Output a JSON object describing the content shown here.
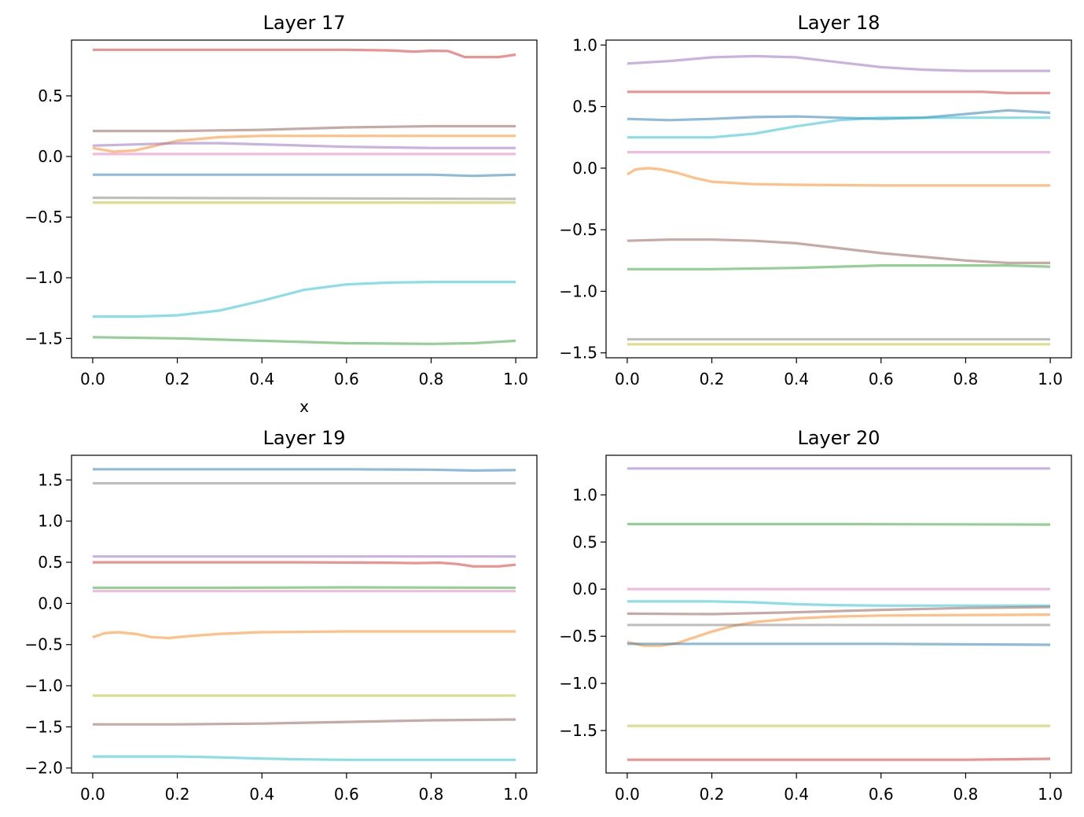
{
  "colors": {
    "blue": "#1f77b4",
    "orange": "#ff7f0e",
    "green": "#2ca02c",
    "red": "#d62728",
    "purple": "#9467bd",
    "brown": "#8c564b",
    "pink": "#e377c2",
    "gray": "#7f7f7f",
    "olive": "#bcbd22",
    "cyan": "#17becf"
  },
  "chart_data": [
    {
      "type": "line",
      "title": "Layer 17",
      "xlabel": "x",
      "ylabel": "",
      "xlim": [
        -0.05,
        1.05
      ],
      "ylim": [
        -1.66,
        0.96
      ],
      "xticks": [
        0.0,
        0.2,
        0.4,
        0.6,
        0.8,
        1.0
      ],
      "xtick_labels": [
        "0.0",
        "0.2",
        "0.4",
        "0.6",
        "0.8",
        "1.0"
      ],
      "yticks": [
        -1.5,
        -1.0,
        -0.5,
        0.0,
        0.5
      ],
      "ytick_labels": [
        "−1.5",
        "−1.0",
        "−0.5",
        "0.0",
        "0.5"
      ],
      "grid": false,
      "series": [
        {
          "color": "red",
          "x": [
            0,
            0.2,
            0.4,
            0.6,
            0.7,
            0.76,
            0.8,
            0.84,
            0.88,
            0.92,
            0.96,
            1.0
          ],
          "y": [
            0.88,
            0.88,
            0.88,
            0.88,
            0.875,
            0.865,
            0.872,
            0.87,
            0.82,
            0.82,
            0.82,
            0.84
          ]
        },
        {
          "color": "brown",
          "x": [
            0,
            0.2,
            0.4,
            0.6,
            0.8,
            1.0
          ],
          "y": [
            0.21,
            0.21,
            0.22,
            0.24,
            0.25,
            0.25
          ]
        },
        {
          "color": "orange",
          "x": [
            0,
            0.05,
            0.1,
            0.15,
            0.2,
            0.3,
            0.4,
            0.6,
            0.8,
            1.0
          ],
          "y": [
            0.07,
            0.04,
            0.05,
            0.09,
            0.13,
            0.16,
            0.17,
            0.17,
            0.17,
            0.17
          ]
        },
        {
          "color": "purple",
          "x": [
            0,
            0.2,
            0.3,
            0.4,
            0.6,
            0.8,
            1.0
          ],
          "y": [
            0.09,
            0.11,
            0.11,
            0.1,
            0.08,
            0.07,
            0.07
          ]
        },
        {
          "color": "pink",
          "x": [
            0,
            0.5,
            1.0
          ],
          "y": [
            0.02,
            0.02,
            0.02
          ]
        },
        {
          "color": "blue",
          "x": [
            0,
            0.2,
            0.4,
            0.6,
            0.8,
            0.9,
            1.0
          ],
          "y": [
            -0.15,
            -0.15,
            -0.15,
            -0.15,
            -0.15,
            -0.16,
            -0.15
          ]
        },
        {
          "color": "gray",
          "x": [
            0,
            0.5,
            1.0
          ],
          "y": [
            -0.34,
            -0.345,
            -0.35
          ]
        },
        {
          "color": "olive",
          "x": [
            0,
            0.5,
            1.0
          ],
          "y": [
            -0.38,
            -0.38,
            -0.38
          ]
        },
        {
          "color": "cyan",
          "x": [
            0,
            0.1,
            0.2,
            0.3,
            0.4,
            0.5,
            0.6,
            0.7,
            0.8,
            1.0
          ],
          "y": [
            -1.32,
            -1.32,
            -1.31,
            -1.27,
            -1.19,
            -1.1,
            -1.055,
            -1.04,
            -1.035,
            -1.035
          ]
        },
        {
          "color": "green",
          "x": [
            0,
            0.2,
            0.4,
            0.6,
            0.8,
            0.9,
            1.0
          ],
          "y": [
            -1.49,
            -1.5,
            -1.52,
            -1.54,
            -1.545,
            -1.54,
            -1.52
          ]
        }
      ]
    },
    {
      "type": "line",
      "title": "Layer 18",
      "xlabel": "",
      "ylabel": "",
      "xlim": [
        -0.05,
        1.05
      ],
      "ylim": [
        -1.54,
        1.04
      ],
      "xticks": [
        0.0,
        0.2,
        0.4,
        0.6,
        0.8,
        1.0
      ],
      "xtick_labels": [
        "0.0",
        "0.2",
        "0.4",
        "0.6",
        "0.8",
        "1.0"
      ],
      "yticks": [
        -1.5,
        -1.0,
        -0.5,
        0.0,
        0.5,
        1.0
      ],
      "ytick_labels": [
        "−1.5",
        "−1.0",
        "−0.5",
        "0.0",
        "0.5",
        "1.0"
      ],
      "grid": false,
      "series": [
        {
          "color": "purple",
          "x": [
            0,
            0.1,
            0.2,
            0.3,
            0.4,
            0.5,
            0.6,
            0.7,
            0.8,
            1.0
          ],
          "y": [
            0.85,
            0.87,
            0.9,
            0.91,
            0.9,
            0.86,
            0.82,
            0.8,
            0.79,
            0.79
          ]
        },
        {
          "color": "red",
          "x": [
            0,
            0.5,
            0.8,
            0.84,
            0.9,
            1.0
          ],
          "y": [
            0.62,
            0.62,
            0.62,
            0.62,
            0.61,
            0.61
          ]
        },
        {
          "color": "blue",
          "x": [
            0,
            0.1,
            0.2,
            0.3,
            0.4,
            0.5,
            0.6,
            0.7,
            0.8,
            0.9,
            1.0
          ],
          "y": [
            0.4,
            0.39,
            0.4,
            0.415,
            0.42,
            0.41,
            0.4,
            0.41,
            0.44,
            0.47,
            0.45
          ]
        },
        {
          "color": "cyan",
          "x": [
            0,
            0.1,
            0.2,
            0.3,
            0.4,
            0.5,
            0.6,
            0.8,
            1.0
          ],
          "y": [
            0.25,
            0.25,
            0.25,
            0.28,
            0.34,
            0.39,
            0.41,
            0.41,
            0.41
          ]
        },
        {
          "color": "pink",
          "x": [
            0,
            0.5,
            1.0
          ],
          "y": [
            0.13,
            0.13,
            0.13
          ]
        },
        {
          "color": "orange",
          "x": [
            0,
            0.02,
            0.05,
            0.08,
            0.12,
            0.16,
            0.2,
            0.3,
            0.4,
            0.6,
            0.8,
            1.0
          ],
          "y": [
            -0.05,
            -0.01,
            0.0,
            -0.01,
            -0.04,
            -0.08,
            -0.11,
            -0.13,
            -0.135,
            -0.14,
            -0.14,
            -0.14
          ]
        },
        {
          "color": "brown",
          "x": [
            0,
            0.1,
            0.2,
            0.3,
            0.4,
            0.5,
            0.6,
            0.7,
            0.8,
            0.9,
            1.0
          ],
          "y": [
            -0.59,
            -0.58,
            -0.58,
            -0.59,
            -0.61,
            -0.65,
            -0.69,
            -0.72,
            -0.75,
            -0.77,
            -0.77
          ]
        },
        {
          "color": "green",
          "x": [
            0,
            0.2,
            0.4,
            0.6,
            0.8,
            0.9,
            1.0
          ],
          "y": [
            -0.82,
            -0.82,
            -0.81,
            -0.79,
            -0.79,
            -0.79,
            -0.8
          ]
        },
        {
          "color": "gray",
          "x": [
            0,
            0.5,
            1.0
          ],
          "y": [
            -1.39,
            -1.39,
            -1.39
          ]
        },
        {
          "color": "olive",
          "x": [
            0,
            0.5,
            1.0
          ],
          "y": [
            -1.43,
            -1.43,
            -1.43
          ]
        }
      ]
    },
    {
      "type": "line",
      "title": "Layer 19",
      "xlabel": "",
      "ylabel": "",
      "xlim": [
        -0.05,
        1.05
      ],
      "ylim": [
        -2.06,
        1.8
      ],
      "xticks": [
        0.0,
        0.2,
        0.4,
        0.6,
        0.8,
        1.0
      ],
      "xtick_labels": [
        "0.0",
        "0.2",
        "0.4",
        "0.6",
        "0.8",
        "1.0"
      ],
      "yticks": [
        -2.0,
        -1.5,
        -1.0,
        -0.5,
        0.0,
        0.5,
        1.0,
        1.5
      ],
      "ytick_labels": [
        "−2.0",
        "−1.5",
        "−1.0",
        "−0.5",
        "0.0",
        "0.5",
        "1.0",
        "1.5"
      ],
      "grid": false,
      "series": [
        {
          "color": "blue",
          "x": [
            0,
            0.2,
            0.4,
            0.6,
            0.8,
            0.9,
            1.0
          ],
          "y": [
            1.63,
            1.63,
            1.63,
            1.63,
            1.625,
            1.615,
            1.62
          ]
        },
        {
          "color": "gray",
          "x": [
            0,
            0.5,
            1.0
          ],
          "y": [
            1.46,
            1.46,
            1.46
          ]
        },
        {
          "color": "purple",
          "x": [
            0,
            0.5,
            1.0
          ],
          "y": [
            0.57,
            0.57,
            0.57
          ]
        },
        {
          "color": "red",
          "x": [
            0,
            0.5,
            0.7,
            0.76,
            0.82,
            0.86,
            0.9,
            0.96,
            1.0
          ],
          "y": [
            0.5,
            0.5,
            0.495,
            0.49,
            0.495,
            0.48,
            0.45,
            0.45,
            0.47
          ]
        },
        {
          "color": "green",
          "x": [
            0,
            0.3,
            0.6,
            1.0
          ],
          "y": [
            0.19,
            0.19,
            0.195,
            0.19
          ]
        },
        {
          "color": "pink",
          "x": [
            0,
            0.5,
            1.0
          ],
          "y": [
            0.15,
            0.15,
            0.15
          ]
        },
        {
          "color": "orange",
          "x": [
            0,
            0.03,
            0.06,
            0.1,
            0.14,
            0.18,
            0.22,
            0.3,
            0.4,
            0.6,
            0.8,
            1.0
          ],
          "y": [
            -0.41,
            -0.36,
            -0.35,
            -0.37,
            -0.41,
            -0.42,
            -0.4,
            -0.37,
            -0.35,
            -0.34,
            -0.34,
            -0.34
          ]
        },
        {
          "color": "olive",
          "x": [
            0,
            0.5,
            1.0
          ],
          "y": [
            -1.12,
            -1.12,
            -1.12
          ]
        },
        {
          "color": "brown",
          "x": [
            0,
            0.2,
            0.4,
            0.6,
            0.8,
            1.0
          ],
          "y": [
            -1.47,
            -1.47,
            -1.46,
            -1.44,
            -1.42,
            -1.41
          ]
        },
        {
          "color": "cyan",
          "x": [
            0,
            0.2,
            0.3,
            0.4,
            0.5,
            0.6,
            0.8,
            1.0
          ],
          "y": [
            -1.86,
            -1.86,
            -1.87,
            -1.885,
            -1.895,
            -1.9,
            -1.9,
            -1.9
          ]
        }
      ]
    },
    {
      "type": "line",
      "title": "Layer 20",
      "xlabel": "",
      "ylabel": "",
      "xlim": [
        -0.05,
        1.05
      ],
      "ylim": [
        -1.95,
        1.42
      ],
      "xticks": [
        0.0,
        0.2,
        0.4,
        0.6,
        0.8,
        1.0
      ],
      "xtick_labels": [
        "0.0",
        "0.2",
        "0.4",
        "0.6",
        "0.8",
        "1.0"
      ],
      "yticks": [
        -1.5,
        -1.0,
        -0.5,
        0.0,
        0.5,
        1.0
      ],
      "ytick_labels": [
        "−1.5",
        "−1.0",
        "−0.5",
        "0.0",
        "0.5",
        "1.0"
      ],
      "grid": false,
      "series": [
        {
          "color": "purple",
          "x": [
            0,
            0.5,
            1.0
          ],
          "y": [
            1.28,
            1.28,
            1.28
          ]
        },
        {
          "color": "green",
          "x": [
            0,
            0.5,
            1.0
          ],
          "y": [
            0.69,
            0.69,
            0.685
          ]
        },
        {
          "color": "pink",
          "x": [
            0,
            0.5,
            1.0
          ],
          "y": [
            0.0,
            0.0,
            0.0
          ]
        },
        {
          "color": "cyan",
          "x": [
            0,
            0.2,
            0.3,
            0.4,
            0.5,
            0.6,
            0.8,
            1.0
          ],
          "y": [
            -0.13,
            -0.13,
            -0.14,
            -0.16,
            -0.17,
            -0.175,
            -0.175,
            -0.175
          ]
        },
        {
          "color": "brown",
          "x": [
            0,
            0.2,
            0.4,
            0.6,
            0.8,
            1.0
          ],
          "y": [
            -0.26,
            -0.265,
            -0.245,
            -0.22,
            -0.2,
            -0.19
          ]
        },
        {
          "color": "orange",
          "x": [
            0,
            0.04,
            0.08,
            0.12,
            0.16,
            0.2,
            0.25,
            0.3,
            0.4,
            0.5,
            0.6,
            0.8,
            1.0
          ],
          "y": [
            -0.56,
            -0.6,
            -0.6,
            -0.57,
            -0.51,
            -0.45,
            -0.39,
            -0.35,
            -0.31,
            -0.29,
            -0.28,
            -0.275,
            -0.27
          ]
        },
        {
          "color": "gray",
          "x": [
            0,
            0.5,
            1.0
          ],
          "y": [
            -0.38,
            -0.38,
            -0.38
          ]
        },
        {
          "color": "blue",
          "x": [
            0,
            0.2,
            0.4,
            0.6,
            0.8,
            1.0
          ],
          "y": [
            -0.58,
            -0.58,
            -0.58,
            -0.58,
            -0.585,
            -0.59
          ]
        },
        {
          "color": "olive",
          "x": [
            0,
            0.5,
            1.0
          ],
          "y": [
            -1.45,
            -1.45,
            -1.45
          ]
        },
        {
          "color": "red",
          "x": [
            0,
            0.5,
            0.8,
            1.0
          ],
          "y": [
            -1.81,
            -1.81,
            -1.81,
            -1.8
          ]
        }
      ]
    }
  ]
}
